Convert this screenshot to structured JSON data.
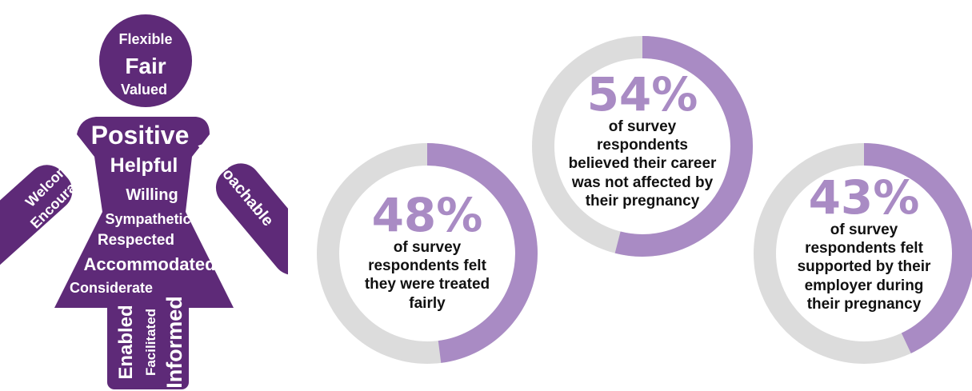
{
  "colors": {
    "purple": "#5e2a78",
    "ring_fill": "#a98bc4",
    "ring_track": "#dcdcdc",
    "text": "#111111"
  },
  "figure_words": {
    "head": [
      "Flexible",
      "Fair",
      "Valued"
    ],
    "body": [
      "Positive",
      "Helpful",
      "Willing",
      "Sympathetic",
      "Respected",
      "Accommodated",
      "Considerate"
    ],
    "left_arm": [
      "Welcome",
      "Encouraged"
    ],
    "right_arm": [
      "Approachable"
    ],
    "legs": [
      "Enabled",
      "Facilitated",
      "Informed"
    ]
  },
  "chart_data": [
    {
      "type": "pie",
      "values": [
        48,
        52
      ],
      "percent_label": "48%",
      "caption": "of survey respondents felt they were treated fairly"
    },
    {
      "type": "pie",
      "values": [
        54,
        46
      ],
      "percent_label": "54%",
      "caption": "of survey respondents believed their career was not affected by their pregnancy"
    },
    {
      "type": "pie",
      "values": [
        43,
        57
      ],
      "percent_label": "43%",
      "caption": "of survey respondents felt supported by their employer during their pregnancy"
    }
  ]
}
